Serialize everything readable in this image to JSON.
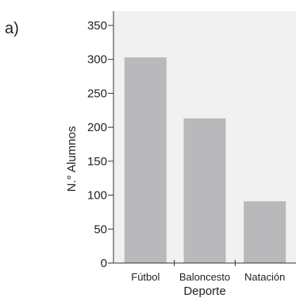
{
  "panel_label": "a)",
  "colors": {
    "plot_bg": "#f1f1f1",
    "bar": "#b9b9bb",
    "axis": "#333333",
    "text": "#222222"
  },
  "chart_data": {
    "type": "bar",
    "title": "",
    "xlabel": "Deporte",
    "ylabel": "N.° Alumnos",
    "categories": [
      "Fútbol",
      "Baloncesto",
      "Natación"
    ],
    "values": [
      303,
      213,
      91
    ],
    "ylim": [
      0,
      350
    ],
    "yticks": [
      0,
      50,
      100,
      150,
      200,
      250,
      300,
      350
    ],
    "grid": false,
    "legend": "none"
  }
}
